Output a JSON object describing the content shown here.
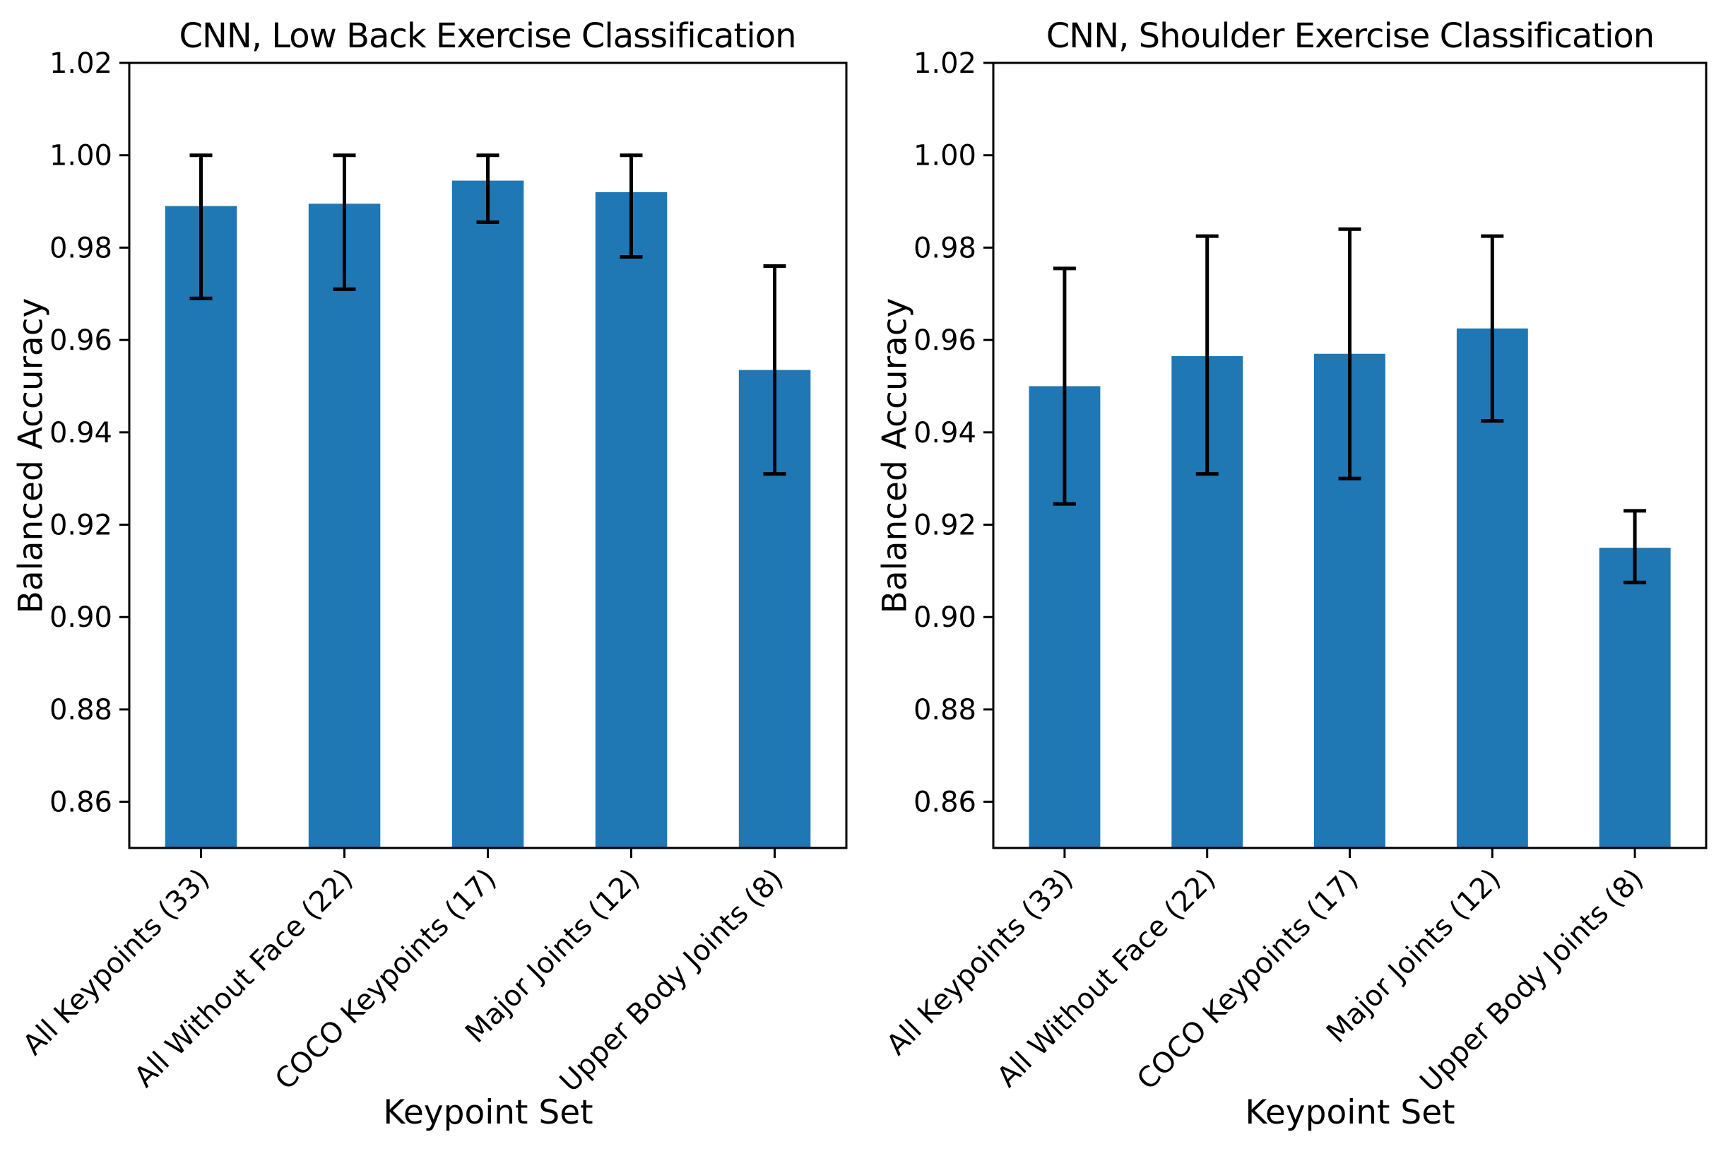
{
  "figure": {
    "background_color": "#ffffff",
    "text_color": "#000000",
    "bar_color": "#1f77b4",
    "error_bar_color": "#000000"
  },
  "chart_data": [
    {
      "type": "bar",
      "title": "CNN, Low Back Exercise Classification",
      "xlabel": "Keypoint Set",
      "ylabel": "Balanced Accuracy",
      "categories": [
        "All Keypoints (33)",
        "All Without Face (22)",
        "COCO Keypoints (17)",
        "Major Joints (12)",
        "Upper Body Joints (8)"
      ],
      "values": [
        0.989,
        0.9895,
        0.9945,
        0.992,
        0.9535
      ],
      "error_low": [
        0.969,
        0.971,
        0.9855,
        0.978,
        0.931
      ],
      "error_high": [
        1.0,
        1.0,
        1.0,
        1.0,
        0.976
      ],
      "ylim": [
        0.85,
        1.02
      ],
      "yticks": [
        0.86,
        0.88,
        0.9,
        0.92,
        0.94,
        0.96,
        0.98,
        1.0,
        1.02
      ],
      "bar_color": "#1f77b4",
      "grid": false,
      "legend": "none",
      "xtick_rotation_degrees": 45
    },
    {
      "type": "bar",
      "title": "CNN, Shoulder Exercise Classification",
      "xlabel": "Keypoint Set",
      "ylabel": "Balanced Accuracy",
      "categories": [
        "All Keypoints (33)",
        "All Without Face (22)",
        "COCO Keypoints (17)",
        "Major Joints (12)",
        "Upper Body Joints (8)"
      ],
      "values": [
        0.95,
        0.9565,
        0.957,
        0.9625,
        0.915
      ],
      "error_low": [
        0.9245,
        0.931,
        0.93,
        0.9425,
        0.9075
      ],
      "error_high": [
        0.9755,
        0.9825,
        0.984,
        0.9825,
        0.923
      ],
      "ylim": [
        0.85,
        1.02
      ],
      "yticks": [
        0.86,
        0.88,
        0.9,
        0.92,
        0.94,
        0.96,
        0.98,
        1.0,
        1.02
      ],
      "bar_color": "#1f77b4",
      "grid": false,
      "legend": "none",
      "xtick_rotation_degrees": 45
    }
  ]
}
